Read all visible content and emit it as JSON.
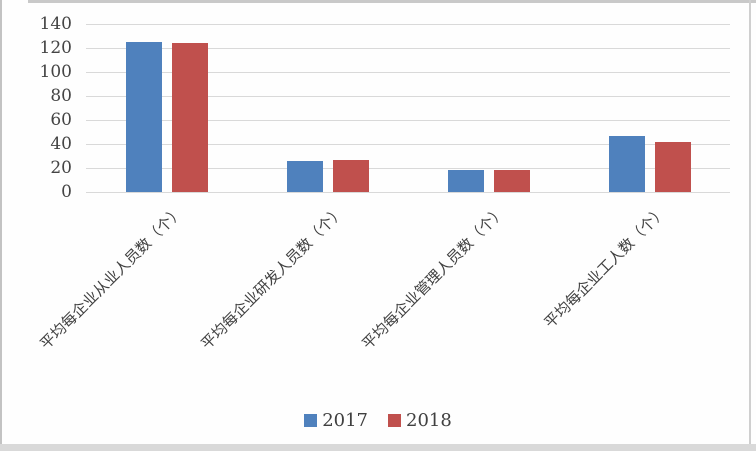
{
  "chart_data": {
    "type": "bar",
    "title": "",
    "xlabel": "",
    "ylabel": "",
    "categories": [
      "平均每企业从业人员数（个）",
      "平均每企业研发人员数（个）",
      "平均每企业管理人员数（个）",
      "平均每企业工人数（个）"
    ],
    "series": [
      {
        "name": "2017",
        "color": "#4F81BD",
        "values": [
          125,
          26,
          18,
          47
        ]
      },
      {
        "name": "2018",
        "color": "#C0504D",
        "values": [
          124,
          27,
          18,
          42
        ]
      }
    ],
    "ylim": [
      0,
      140
    ],
    "y_ticks": [
      0,
      20,
      40,
      60,
      80,
      100,
      120,
      140
    ],
    "grid": true,
    "legend_position": "bottom"
  },
  "colors": {
    "gridline": "#d9d9d9",
    "tick_text": "#444444",
    "category_text": "#3f3f3f",
    "legend_text": "#404040",
    "background": "#fefefe",
    "frame_border": "#c9c9c9"
  }
}
